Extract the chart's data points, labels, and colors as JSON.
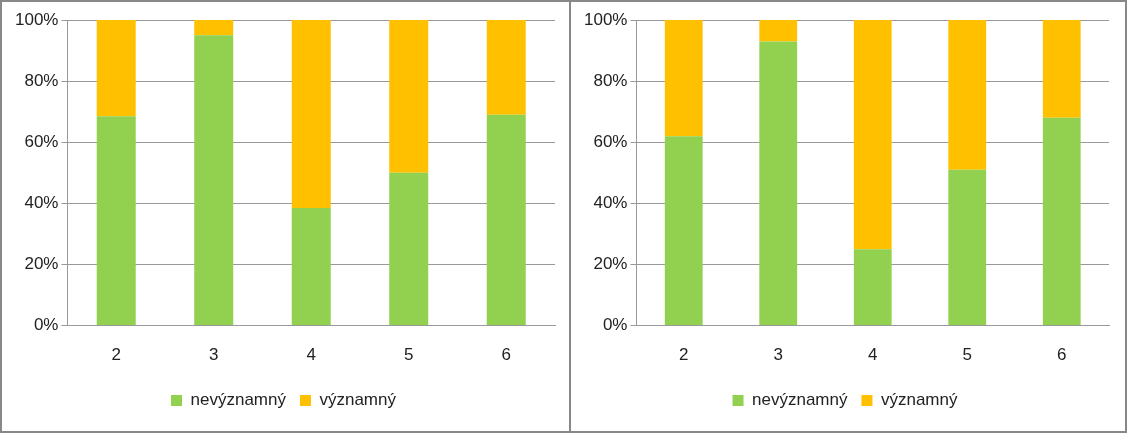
{
  "chart_data": [
    {
      "type": "bar",
      "stacked": true,
      "categories": [
        "2",
        "3",
        "4",
        "5",
        "6"
      ],
      "series": [
        {
          "name": "nevýznamný",
          "color": "#92d050",
          "values": [
            68.5,
            95,
            38.5,
            50,
            69
          ]
        },
        {
          "name": "významný",
          "color": "#ffc000",
          "values": [
            31.5,
            5,
            61.5,
            50,
            31
          ]
        }
      ],
      "ylim": [
        0,
        100
      ],
      "yticks": [
        {
          "value": 0,
          "label": "0%"
        },
        {
          "value": 20,
          "label": "20%"
        },
        {
          "value": 40,
          "label": "40%"
        },
        {
          "value": 60,
          "label": "60%"
        },
        {
          "value": 80,
          "label": "80%"
        },
        {
          "value": 100,
          "label": "100%"
        }
      ],
      "grid": "y",
      "legend": "bottom"
    },
    {
      "type": "bar",
      "stacked": true,
      "categories": [
        "2",
        "3",
        "4",
        "5",
        "6"
      ],
      "series": [
        {
          "name": "nevýznamný",
          "color": "#92d050",
          "values": [
            62,
            93,
            25,
            51,
            68
          ]
        },
        {
          "name": "významný",
          "color": "#ffc000",
          "values": [
            38,
            7,
            75,
            49,
            32
          ]
        }
      ],
      "ylim": [
        0,
        100
      ],
      "yticks": [
        {
          "value": 0,
          "label": "0%"
        },
        {
          "value": 20,
          "label": "20%"
        },
        {
          "value": 40,
          "label": "40%"
        },
        {
          "value": 60,
          "label": "60%"
        },
        {
          "value": 80,
          "label": "80%"
        },
        {
          "value": 100,
          "label": "100%"
        }
      ],
      "grid": "y",
      "legend": "bottom"
    }
  ]
}
